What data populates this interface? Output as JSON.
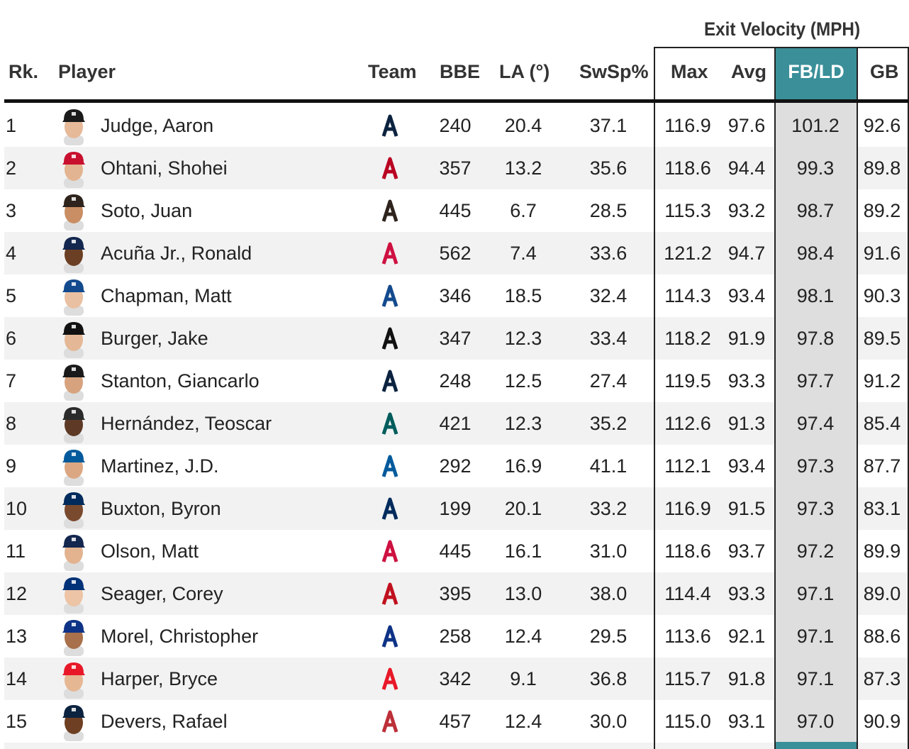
{
  "group_title": "Exit Velocity (MPH)",
  "headers": {
    "rank": "Rk.",
    "player": "Player",
    "team": "Team",
    "bbe": "BBE",
    "la": "LA (°)",
    "swsp": "SwSp%",
    "max": "Max",
    "avg": "Avg",
    "fbld": "FB/LD",
    "gb": "GB"
  },
  "colors": {
    "accent": "#3a8f99",
    "highlight_col": "#dedede",
    "alt_row": "#f2f2f2"
  },
  "rows": [
    {
      "rank": "1",
      "name": "Judge, Aaron",
      "team_icon": "yankees-logo-icon",
      "team_color": "#0c2340",
      "cap": "#1a1a1a",
      "skin": "#e6b999",
      "bbe": "240",
      "la": "20.4",
      "swsp": "37.1",
      "max": "116.9",
      "avg": "97.6",
      "fbld": "101.2",
      "gb": "92.6"
    },
    {
      "rank": "2",
      "name": "Ohtani, Shohei",
      "team_icon": "angels-logo-icon",
      "team_color": "#ba0021",
      "cap": "#c8102e",
      "skin": "#e3b491",
      "bbe": "357",
      "la": "13.2",
      "swsp": "35.6",
      "max": "118.6",
      "avg": "94.4",
      "fbld": "99.3",
      "gb": "89.8"
    },
    {
      "rank": "3",
      "name": "Soto, Juan",
      "team_icon": "padres-logo-icon",
      "team_color": "#2f241d",
      "cap": "#2f241d",
      "skin": "#c98e63",
      "bbe": "445",
      "la": "6.7",
      "swsp": "28.5",
      "max": "115.3",
      "avg": "93.2",
      "fbld": "98.7",
      "gb": "89.2"
    },
    {
      "rank": "4",
      "name": "Acuña Jr., Ronald",
      "team_icon": "braves-logo-icon",
      "team_color": "#ce1141",
      "cap": "#13274f",
      "skin": "#6b3f24",
      "bbe": "562",
      "la": "7.4",
      "swsp": "33.6",
      "max": "121.2",
      "avg": "94.7",
      "fbld": "98.4",
      "gb": "91.6"
    },
    {
      "rank": "5",
      "name": "Chapman, Matt",
      "team_icon": "blue-jays-logo-icon",
      "team_color": "#134a8e",
      "cap": "#134a8e",
      "skin": "#eac0a2",
      "bbe": "346",
      "la": "18.5",
      "swsp": "32.4",
      "max": "114.3",
      "avg": "93.4",
      "fbld": "98.1",
      "gb": "90.3"
    },
    {
      "rank": "6",
      "name": "Burger, Jake",
      "team_icon": "marlins-logo-icon",
      "team_color": "#111111",
      "cap": "#111111",
      "skin": "#e4b896",
      "bbe": "347",
      "la": "12.3",
      "swsp": "33.4",
      "max": "118.2",
      "avg": "91.9",
      "fbld": "97.8",
      "gb": "89.5"
    },
    {
      "rank": "7",
      "name": "Stanton, Giancarlo",
      "team_icon": "yankees-logo-icon",
      "team_color": "#0c2340",
      "cap": "#1a1a1a",
      "skin": "#d7a37e",
      "bbe": "248",
      "la": "12.5",
      "swsp": "27.4",
      "max": "119.5",
      "avg": "93.3",
      "fbld": "97.7",
      "gb": "91.2"
    },
    {
      "rank": "8",
      "name": "Hernández, Teoscar",
      "team_icon": "mariners-logo-icon",
      "team_color": "#005c5c",
      "cap": "#2b2b2b",
      "skin": "#5e3a26",
      "bbe": "421",
      "la": "12.3",
      "swsp": "35.2",
      "max": "112.6",
      "avg": "91.3",
      "fbld": "97.4",
      "gb": "85.4"
    },
    {
      "rank": "9",
      "name": "Martinez, J.D.",
      "team_icon": "dodgers-logo-icon",
      "team_color": "#005a9c",
      "cap": "#005a9c",
      "skin": "#dba783",
      "bbe": "292",
      "la": "16.9",
      "swsp": "41.1",
      "max": "112.1",
      "avg": "93.4",
      "fbld": "97.3",
      "gb": "87.7"
    },
    {
      "rank": "10",
      "name": "Buxton, Byron",
      "team_icon": "twins-logo-icon",
      "team_color": "#002b5c",
      "cap": "#002b5c",
      "skin": "#7a4a2e",
      "bbe": "199",
      "la": "20.1",
      "swsp": "33.2",
      "max": "116.9",
      "avg": "91.5",
      "fbld": "97.3",
      "gb": "83.1"
    },
    {
      "rank": "11",
      "name": "Olson, Matt",
      "team_icon": "braves-logo-icon",
      "team_color": "#ce1141",
      "cap": "#13274f",
      "skin": "#e3b390",
      "bbe": "445",
      "la": "16.1",
      "swsp": "31.0",
      "max": "118.6",
      "avg": "93.7",
      "fbld": "97.2",
      "gb": "89.9"
    },
    {
      "rank": "12",
      "name": "Seager, Corey",
      "team_icon": "rangers-logo-icon",
      "team_color": "#c0111f",
      "cap": "#003278",
      "skin": "#edc4a6",
      "bbe": "395",
      "la": "13.0",
      "swsp": "38.0",
      "max": "114.4",
      "avg": "93.3",
      "fbld": "97.1",
      "gb": "89.0"
    },
    {
      "rank": "13",
      "name": "Morel, Christopher",
      "team_icon": "cubs-logo-icon",
      "team_color": "#0e3386",
      "cap": "#0e3386",
      "skin": "#a8704b",
      "bbe": "258",
      "la": "12.4",
      "swsp": "29.5",
      "max": "113.6",
      "avg": "92.1",
      "fbld": "97.1",
      "gb": "88.6"
    },
    {
      "rank": "14",
      "name": "Harper, Bryce",
      "team_icon": "phillies-logo-icon",
      "team_color": "#e81828",
      "cap": "#e81828",
      "skin": "#e6b793",
      "bbe": "342",
      "la": "9.1",
      "swsp": "36.8",
      "max": "115.7",
      "avg": "91.8",
      "fbld": "97.1",
      "gb": "87.3"
    },
    {
      "rank": "15",
      "name": "Devers, Rafael",
      "team_icon": "red-sox-logo-icon",
      "team_color": "#bd3039",
      "cap": "#0c2340",
      "skin": "#6e3f22",
      "bbe": "457",
      "la": "12.4",
      "swsp": "30.0",
      "max": "115.0",
      "avg": "93.1",
      "fbld": "97.0",
      "gb": "90.9"
    }
  ]
}
